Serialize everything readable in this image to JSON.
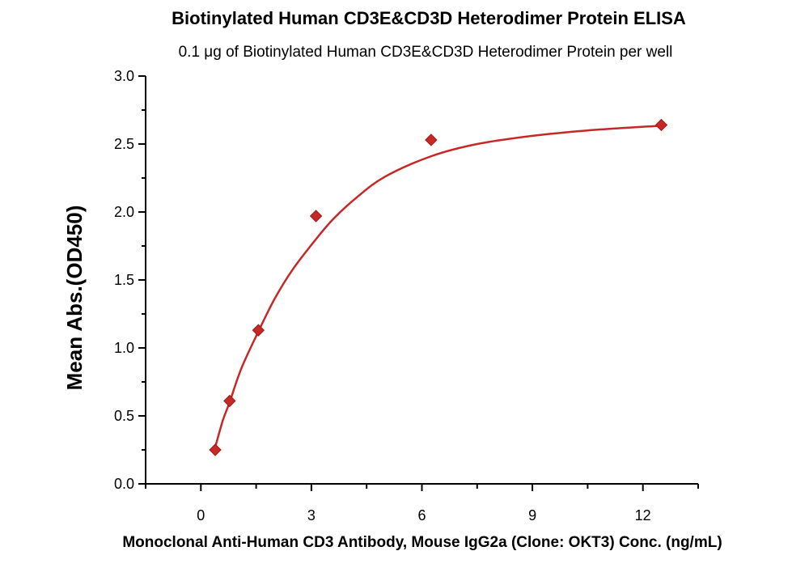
{
  "chart_data": {
    "type": "scatter",
    "title": "Biotinylated Human CD3E&CD3D Heterodimer Protein ELISA",
    "subtitle": "0.1 μg of Biotinylated Human CD3E&CD3D Heterodimer Protein per well",
    "xlabel": "Monoclonal Anti-Human CD3 Antibody, Mouse IgG2a (Clone: OKT3) Conc. (ng/mL)",
    "ylabel": "Mean Abs.(OD450)",
    "xlim": [
      -1.5,
      13.5
    ],
    "ylim": [
      0,
      3.0
    ],
    "xticks": [
      "0",
      "3",
      "6",
      "9",
      "12"
    ],
    "xtick_values": [
      0,
      3,
      6,
      9,
      12
    ],
    "xminor_step": 1.5,
    "yticks": [
      "0.0",
      "0.5",
      "1.0",
      "1.5",
      "2.0",
      "2.5",
      "3.0"
    ],
    "ytick_values": [
      0,
      0.5,
      1.0,
      1.5,
      2.0,
      2.5,
      3.0
    ],
    "yminor_step": 0.25,
    "grid": false,
    "color": "#c62828",
    "series": [
      {
        "name": "data",
        "x": [
          0.39,
          0.78,
          1.56,
          3.125,
          6.25,
          12.5
        ],
        "y": [
          0.25,
          0.61,
          1.13,
          1.97,
          2.53,
          2.64
        ]
      }
    ],
    "fit_curve": {
      "x": [
        0.39,
        0.6,
        0.78,
        1.1,
        1.56,
        2.0,
        2.5,
        3.125,
        3.6,
        4.2,
        5.0,
        6.25,
        7.5,
        9.0,
        10.5,
        12.5
      ],
      "y": [
        0.27,
        0.47,
        0.6,
        0.85,
        1.12,
        1.36,
        1.58,
        1.8,
        1.95,
        2.1,
        2.26,
        2.41,
        2.5,
        2.56,
        2.6,
        2.635
      ]
    }
  }
}
